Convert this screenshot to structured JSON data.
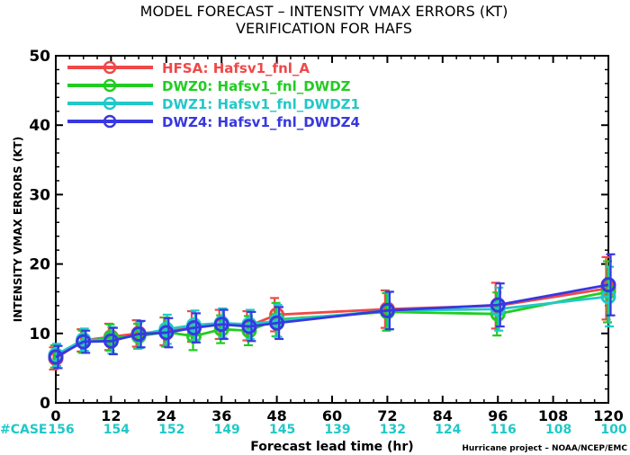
{
  "chart_data": {
    "type": "line",
    "title": "MODEL FORECAST – INTENSITY VMAX ERRORS (KT)",
    "subtitle": "VERIFICATION FOR HAFS",
    "xlabel": "Forecast lead time (hr)",
    "ylabel": "INTENSITY VMAX ERRORS (KT)",
    "credit": "Hurricane project – NOAA/NCEP/EMC",
    "xlim": [
      0,
      120
    ],
    "ylim": [
      0,
      50
    ],
    "x_ticks": [
      0,
      12,
      24,
      36,
      48,
      60,
      72,
      84,
      96,
      108,
      120
    ],
    "y_ticks": [
      0,
      10,
      20,
      30,
      40,
      50
    ],
    "grid": false,
    "legend_position": "top-left",
    "case_label": "#CASE",
    "case_label_color": "#20c8c8",
    "case_counts": [
      {
        "x": 0,
        "n": "156"
      },
      {
        "x": 12,
        "n": "154"
      },
      {
        "x": 24,
        "n": "152"
      },
      {
        "x": 36,
        "n": "149"
      },
      {
        "x": 48,
        "n": "145"
      },
      {
        "x": 60,
        "n": "139"
      },
      {
        "x": 72,
        "n": "132"
      },
      {
        "x": 84,
        "n": "124"
      },
      {
        "x": 96,
        "n": "116"
      },
      {
        "x": 108,
        "n": "108"
      },
      {
        "x": 120,
        "n": "100"
      }
    ],
    "x": [
      0,
      6,
      12,
      18,
      24,
      30,
      36,
      42,
      48,
      72,
      96,
      120
    ],
    "series": [
      {
        "name": "HFSA:  Hafsv1_fnl_A",
        "color": "#f04848",
        "values": [
          6.4,
          9.0,
          9.5,
          10.0,
          10.3,
          11.0,
          11.3,
          11.1,
          12.7,
          13.5,
          14.0,
          16.5
        ],
        "err_low": [
          4.8,
          7.4,
          7.6,
          8.1,
          8.3,
          8.8,
          9.2,
          9.0,
          10.3,
          10.8,
          10.7,
          12.0
        ],
        "err_high": [
          8.0,
          10.6,
          11.4,
          11.9,
          12.3,
          13.2,
          13.4,
          13.2,
          15.1,
          16.2,
          17.3,
          21.0
        ]
      },
      {
        "name": "DWZ0:  Hafsv1_fnl_DWDZ",
        "color": "#22cc22",
        "values": [
          6.7,
          8.8,
          9.4,
          9.6,
          10.2,
          9.6,
          10.6,
          10.4,
          12.0,
          13.1,
          12.8,
          16.0
        ],
        "err_low": [
          5.1,
          7.2,
          7.5,
          7.8,
          8.1,
          7.6,
          8.6,
          8.3,
          9.6,
          10.4,
          9.7,
          11.6
        ],
        "err_high": [
          8.3,
          10.4,
          11.3,
          11.4,
          12.3,
          11.6,
          12.6,
          12.5,
          14.4,
          15.8,
          15.9,
          20.4
        ]
      },
      {
        "name": "DWZ1:  Hafsv1_fnl_DWDZ1",
        "color": "#22c8c8",
        "values": [
          6.9,
          9.1,
          9.0,
          9.8,
          10.6,
          11.2,
          11.5,
          11.3,
          11.8,
          13.3,
          13.5,
          15.3
        ],
        "err_low": [
          5.3,
          7.5,
          7.1,
          7.9,
          8.5,
          9.1,
          9.4,
          9.2,
          9.5,
          10.6,
          10.4,
          11.0
        ],
        "err_high": [
          8.5,
          10.7,
          10.9,
          11.7,
          12.7,
          13.3,
          13.6,
          13.4,
          14.1,
          16.0,
          16.6,
          19.6
        ]
      },
      {
        "name": "DWZ4:  Hafsv1_fnl_DWDZ4",
        "color": "#3838e0",
        "values": [
          6.6,
          8.8,
          8.9,
          9.9,
          10.1,
          10.8,
          11.3,
          11.0,
          11.5,
          13.3,
          14.1,
          17.0
        ],
        "err_low": [
          5.0,
          7.2,
          7.0,
          8.0,
          8.0,
          8.7,
          9.2,
          8.9,
          9.2,
          10.6,
          11.0,
          12.6
        ],
        "err_high": [
          8.2,
          10.4,
          10.8,
          11.8,
          12.2,
          12.9,
          13.4,
          13.1,
          13.8,
          16.0,
          17.2,
          21.4
        ]
      }
    ]
  }
}
